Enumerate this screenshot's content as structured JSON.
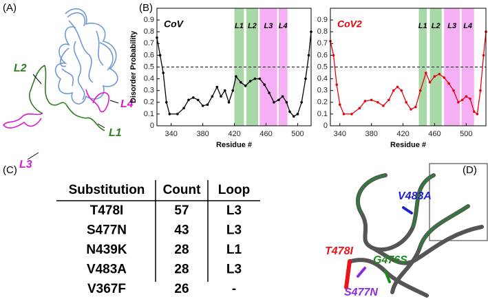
{
  "panel_labels": [
    "(A)",
    "(B)",
    "(C)",
    "(D)"
  ],
  "panel_a": {
    "loops": [
      "L2",
      "L3",
      "L4",
      "L1"
    ]
  },
  "chart_data": [
    {
      "type": "line",
      "title": "CoV",
      "title_color": "#000000",
      "ylabel": "Disorder Probability",
      "xlabel": "Residue #",
      "x": [
        322,
        326,
        330,
        334,
        338,
        348,
        356,
        362,
        368,
        374,
        380,
        386,
        392,
        398,
        403,
        408,
        413,
        418,
        422,
        428,
        434,
        440,
        446,
        452,
        458,
        464,
        470,
        476,
        481,
        486,
        490,
        495,
        500,
        505,
        510,
        514,
        517
      ],
      "series": [
        {
          "color": "#000000",
          "values": [
            0.75,
            0.6,
            0.45,
            0.2,
            0.1,
            0.1,
            0.15,
            0.22,
            0.24,
            0.22,
            0.17,
            0.18,
            0.25,
            0.33,
            0.25,
            0.3,
            0.2,
            0.3,
            0.42,
            0.37,
            0.34,
            0.38,
            0.4,
            0.4,
            0.35,
            0.28,
            0.2,
            0.22,
            0.25,
            0.2,
            0.12,
            0.08,
            0.1,
            0.2,
            0.4,
            0.6,
            0.8
          ]
        }
      ],
      "xlim": [
        322,
        517
      ],
      "xticks": [
        340,
        380,
        420,
        460,
        500
      ],
      "ylim": [
        0,
        1
      ],
      "yticks": [
        0,
        0.1,
        0.2,
        0.3,
        0.4,
        0.5,
        0.6,
        0.7,
        0.8,
        0.9
      ],
      "threshold": 0.5,
      "regions": [
        {
          "label": "L1",
          "start": 420,
          "end": 432,
          "color": "#a8d8a8"
        },
        {
          "label": "L2",
          "start": 435,
          "end": 450,
          "color": "#a8d8a8"
        },
        {
          "label": "L3",
          "start": 452,
          "end": 474,
          "color": "#f5b0f5"
        },
        {
          "label": "L4",
          "start": 476,
          "end": 487,
          "color": "#f5b0f5"
        }
      ]
    },
    {
      "type": "line",
      "title": "CoV2",
      "title_color": "#e8000b",
      "xlabel": "Residue #",
      "x": [
        328,
        332,
        336,
        340,
        345,
        355,
        365,
        372,
        380,
        388,
        395,
        402,
        408,
        413,
        418,
        424,
        430,
        436,
        442,
        449,
        454,
        460,
        466,
        472,
        478,
        484,
        490,
        495,
        500,
        505,
        510,
        514,
        518,
        522,
        525
      ],
      "series": [
        {
          "color": "#e8000b",
          "values": [
            0.72,
            0.6,
            0.35,
            0.18,
            0.1,
            0.1,
            0.15,
            0.21,
            0.22,
            0.2,
            0.17,
            0.22,
            0.3,
            0.33,
            0.3,
            0.2,
            0.14,
            0.16,
            0.3,
            0.45,
            0.37,
            0.42,
            0.44,
            0.41,
            0.36,
            0.3,
            0.2,
            0.22,
            0.25,
            0.23,
            0.12,
            0.1,
            0.3,
            0.6,
            0.8
          ]
        }
      ],
      "xlim": [
        328,
        525
      ],
      "xticks": [
        340,
        380,
        420,
        460,
        500
      ],
      "ylim": [
        0,
        1
      ],
      "yticks": [
        0,
        0.1,
        0.2,
        0.3,
        0.4,
        0.5,
        0.6,
        0.7,
        0.8,
        0.9
      ],
      "threshold": 0.5,
      "regions": [
        {
          "label": "L1",
          "start": 440,
          "end": 450,
          "color": "#a8d8a8"
        },
        {
          "label": "L2",
          "start": 454,
          "end": 469,
          "color": "#a8d8a8"
        },
        {
          "label": "L3",
          "start": 472,
          "end": 492,
          "color": "#f5b0f5"
        },
        {
          "label": "L4",
          "start": 494,
          "end": 510,
          "color": "#f5b0f5"
        }
      ]
    }
  ],
  "table": {
    "header": [
      "Substitution",
      "Count",
      "Loop"
    ],
    "rows": [
      [
        "T478I",
        57,
        "L3"
      ],
      [
        "S477N",
        43,
        "L3"
      ],
      [
        "N439K",
        28,
        "L1"
      ],
      [
        "V483A",
        28,
        "L3"
      ],
      [
        "V367F",
        26,
        "-"
      ]
    ]
  },
  "panel_d": {
    "mutations": [
      "V483A",
      "T478I",
      "G476S",
      "S477N"
    ]
  }
}
